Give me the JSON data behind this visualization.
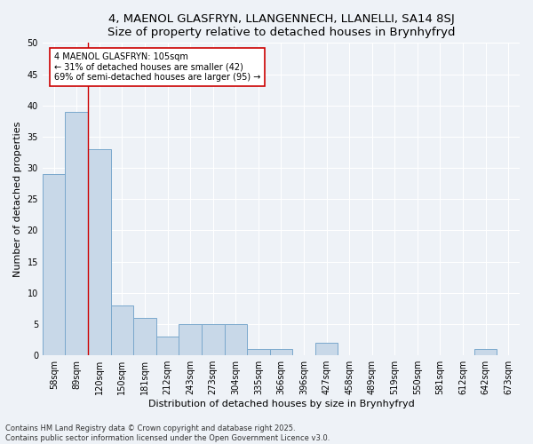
{
  "title_line1": "4, MAENOL GLASFRYN, LLANGENNECH, LLANELLI, SA14 8SJ",
  "title_line2": "Size of property relative to detached houses in Brynhyfryd",
  "xlabel": "Distribution of detached houses by size in Brynhyfryd",
  "ylabel": "Number of detached properties",
  "categories": [
    "58sqm",
    "89sqm",
    "120sqm",
    "150sqm",
    "181sqm",
    "212sqm",
    "243sqm",
    "273sqm",
    "304sqm",
    "335sqm",
    "366sqm",
    "396sqm",
    "427sqm",
    "458sqm",
    "489sqm",
    "519sqm",
    "550sqm",
    "581sqm",
    "612sqm",
    "642sqm",
    "673sqm"
  ],
  "values": [
    29,
    39,
    33,
    8,
    6,
    3,
    5,
    5,
    5,
    1,
    1,
    0,
    2,
    0,
    0,
    0,
    0,
    0,
    0,
    1,
    0
  ],
  "bar_color": "#c8d8e8",
  "bar_edge_color": "#7aa8cc",
  "red_line_x": 1.5,
  "annotation_text": "4 MAENOL GLASFRYN: 105sqm\n← 31% of detached houses are smaller (42)\n69% of semi-detached houses are larger (95) →",
  "annotation_box_color": "#ffffff",
  "annotation_box_edge_color": "#cc0000",
  "ylim": [
    0,
    50
  ],
  "yticks": [
    0,
    5,
    10,
    15,
    20,
    25,
    30,
    35,
    40,
    45,
    50
  ],
  "footer_text": "Contains HM Land Registry data © Crown copyright and database right 2025.\nContains public sector information licensed under the Open Government Licence v3.0.",
  "background_color": "#eef2f7",
  "grid_color": "#ffffff",
  "title_fontsize": 9.5,
  "axis_label_fontsize": 8,
  "tick_fontsize": 7,
  "annotation_fontsize": 7,
  "footer_fontsize": 6
}
